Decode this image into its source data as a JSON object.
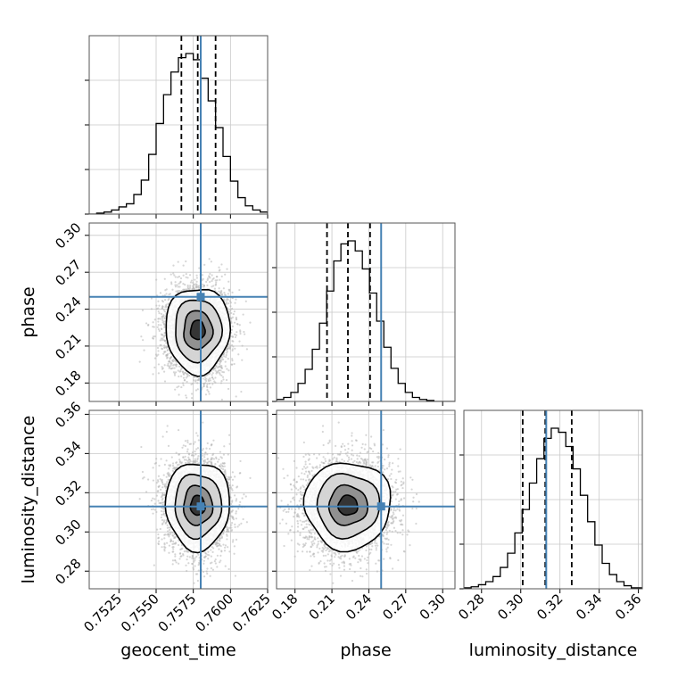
{
  "chart_data": {
    "type": "corner",
    "parameters": [
      "geocent_time",
      "phase",
      "luminosity_distance"
    ],
    "axes": {
      "geocent_time": {
        "label": "geocent_time",
        "range": [
          0.7505,
          0.7625
        ],
        "ticks": [
          0.7525,
          0.755,
          0.7575,
          0.76,
          0.7625
        ],
        "tick_labels": [
          "0.7525",
          "0.7550",
          "0.7575",
          "0.7600",
          "0.7625"
        ]
      },
      "phase": {
        "label": "phase",
        "range": [
          0.165,
          0.31
        ],
        "ticks": [
          0.18,
          0.21,
          0.24,
          0.27,
          0.3
        ],
        "tick_labels": [
          "0.18",
          "0.21",
          "0.24",
          "0.27",
          "0.30"
        ]
      },
      "luminosity_distance": {
        "label": "luminosity_distance",
        "range": [
          0.271,
          0.362
        ],
        "ticks": [
          0.28,
          0.3,
          0.32,
          0.34,
          0.36
        ],
        "tick_labels": [
          "0.28",
          "0.30",
          "0.32",
          "0.34",
          "0.36"
        ]
      }
    },
    "truths": {
      "geocent_time": 0.758,
      "phase": 0.25,
      "luminosity_distance": 0.313
    },
    "quantiles": {
      "geocent_time": [
        0.7567,
        0.7578,
        0.759
      ],
      "phase": [
        0.206,
        0.223,
        0.241
      ],
      "luminosity_distance": [
        0.301,
        0.3125,
        0.326
      ]
    },
    "histograms": {
      "geocent_time": {
        "edges": [
          0.7505,
          0.763
        ],
        "counts": [
          0,
          1,
          2,
          4,
          7,
          10,
          19,
          33,
          58,
          88,
          116,
          138,
          152,
          156,
          150,
          132,
          110,
          84,
          56,
          32,
          16,
          8,
          4,
          2,
          1
        ]
      },
      "phase": {
        "edges": [
          0.165,
          0.3103
        ],
        "counts": [
          2,
          4,
          9,
          18,
          32,
          52,
          78,
          110,
          140,
          157,
          160,
          150,
          132,
          108,
          80,
          54,
          33,
          18,
          9,
          4,
          2,
          1,
          0,
          0,
          0
        ]
      },
      "luminosity_distance": {
        "edges": [
          0.271,
          0.3638
        ],
        "counts": [
          1,
          2,
          4,
          7,
          12,
          21,
          35,
          55,
          78,
          104,
          128,
          148,
          158,
          154,
          140,
          118,
          92,
          66,
          43,
          25,
          14,
          7,
          3,
          1,
          1
        ]
      }
    },
    "posterior_means": {
      "geocent_time": 0.7578,
      "phase": 0.223,
      "luminosity_distance": 0.3135
    },
    "posterior_sds": {
      "geocent_time": 0.00108,
      "phase": 0.0175,
      "luminosity_distance": 0.0112
    },
    "correlations": [
      [
        1,
        0,
        0
      ],
      [
        0,
        1,
        0
      ],
      [
        0,
        0,
        1
      ]
    ],
    "colors": {
      "truth": "#4682b4",
      "hist": "#000000",
      "quantile": "#000000",
      "grid": "#c8c8c8",
      "samples": "#b4b4b4"
    },
    "grid": true
  }
}
